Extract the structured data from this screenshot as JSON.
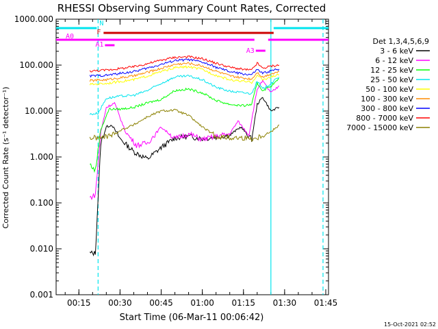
{
  "chart_data": {
    "type": "line",
    "title": "RHESSI Observing Summary Count Rates, Corrected",
    "xlabel": "Start Time (06-Mar-11 00:06:42)",
    "ylabel": "Corrected Count Rate (s⁻¹ detector⁻¹)",
    "y_scale": "log",
    "ylim": [
      0.001,
      1000
    ],
    "xlim_minutes": [
      "00:06:42",
      "01:46:00"
    ],
    "y_ticks": [
      "1000.000",
      "100.000",
      "10.000",
      "1.000",
      "0.100",
      "0.010",
      "0.001"
    ],
    "x_ticks": [
      "00:15",
      "00:30",
      "00:45",
      "01:00",
      "01:15",
      "01:30",
      "01:45"
    ],
    "legend_title": "Det 1,3,4,5,6,9",
    "legend_position": "right",
    "footer": "15-Oct-2021 02:52",
    "grid": false,
    "flags": [
      {
        "label": "N",
        "color": "#00e5ee",
        "segments": [
          [
            "00:06:42",
            "00:21:30"
          ],
          [
            "01:26:00",
            "01:46:00"
          ]
        ]
      },
      {
        "label": "F",
        "color": "#cc0000",
        "segments": [
          [
            "00:24:00",
            "01:26:00"
          ]
        ]
      },
      {
        "label": "A0",
        "color": "#ff00ff",
        "segments": [
          [
            "00:06:42",
            "01:19:00"
          ],
          [
            "01:24:00",
            "01:46:00"
          ]
        ]
      },
      {
        "label": "A1",
        "color": "#ff00ff",
        "segments": [
          [
            "00:24:30",
            "00:28:00"
          ]
        ]
      },
      {
        "label": "A3",
        "color": "#ff00ff",
        "segments": [
          [
            "01:19:30",
            "01:23:00"
          ]
        ]
      }
    ],
    "markers": {
      "dashed": [
        "00:22:00",
        "01:44:00"
      ],
      "solid": [
        "01:25:00"
      ]
    },
    "series": [
      {
        "name": "3 - 6 keV",
        "color": "#000000",
        "x": [
          "00:19",
          "00:21",
          "00:23",
          "00:25",
          "00:27",
          "00:30",
          "00:35",
          "00:40",
          "00:45",
          "00:50",
          "00:55",
          "01:00",
          "01:05",
          "01:10",
          "01:14",
          "01:18",
          "01:20",
          "01:22",
          "01:25",
          "01:28"
        ],
        "y": [
          0.008,
          0.008,
          2.0,
          4.5,
          5.0,
          2.5,
          1.3,
          0.9,
          1.6,
          2.6,
          2.8,
          2.5,
          2.7,
          3.0,
          4.5,
          2.4,
          14,
          20,
          10,
          12
        ]
      },
      {
        "name": "6 - 12 keV",
        "color": "#ff00ff",
        "x": [
          "00:19",
          "00:21",
          "00:23",
          "00:25",
          "00:28",
          "00:32",
          "00:36",
          "00:40",
          "00:45",
          "00:50",
          "00:55",
          "01:00",
          "01:05",
          "01:10",
          "01:13",
          "01:17",
          "01:20",
          "01:22",
          "01:25",
          "01:28"
        ],
        "y": [
          0.13,
          0.15,
          3.5,
          12,
          15,
          3.5,
          1.8,
          2.0,
          4.5,
          2.5,
          3.2,
          2.4,
          2.8,
          3.2,
          6,
          3.0,
          30,
          45,
          25,
          35
        ]
      },
      {
        "name": "12 - 25 keV",
        "color": "#00ff00",
        "x": [
          "00:19",
          "00:21",
          "00:23",
          "00:26",
          "00:30",
          "00:35",
          "00:40",
          "00:45",
          "00:50",
          "00:55",
          "01:00",
          "01:05",
          "01:10",
          "01:15",
          "01:18",
          "01:20",
          "01:22",
          "01:25",
          "01:28"
        ],
        "y": [
          0.7,
          0.5,
          4.0,
          11,
          11,
          12,
          15,
          18,
          28,
          30,
          25,
          17,
          14,
          13,
          14,
          40,
          28,
          35,
          50
        ]
      },
      {
        "name": "25 - 50 keV",
        "color": "#00e5ee",
        "x": [
          "00:19",
          "00:22",
          "00:25",
          "00:30",
          "00:35",
          "00:40",
          "00:45",
          "00:50",
          "00:55",
          "01:00",
          "01:05",
          "01:10",
          "01:15",
          "01:18",
          "01:20",
          "01:22",
          "01:25",
          "01:28"
        ],
        "y": [
          8.5,
          9.0,
          19,
          21,
          22,
          28,
          40,
          55,
          58,
          48,
          33,
          27,
          25,
          24,
          45,
          30,
          40,
          55
        ]
      },
      {
        "name": "50 - 100 keV",
        "color": "#ffff00",
        "x": [
          "00:19",
          "00:25",
          "00:30",
          "00:35",
          "00:40",
          "00:45",
          "00:50",
          "00:55",
          "01:00",
          "01:05",
          "01:10",
          "01:15",
          "01:18",
          "01:20",
          "01:22",
          "01:25",
          "01:28"
        ],
        "y": [
          38,
          40,
          44,
          48,
          58,
          72,
          88,
          92,
          80,
          60,
          48,
          44,
          42,
          60,
          48,
          55,
          62
        ]
      },
      {
        "name": "100 - 300 keV",
        "color": "#ff8c00",
        "x": [
          "00:19",
          "00:25",
          "00:30",
          "00:35",
          "00:40",
          "00:45",
          "00:50",
          "00:55",
          "01:00",
          "01:05",
          "01:10",
          "01:15",
          "01:18",
          "01:20",
          "01:22",
          "01:25",
          "01:28"
        ],
        "y": [
          46,
          48,
          53,
          58,
          70,
          85,
          104,
          110,
          96,
          74,
          58,
          52,
          50,
          70,
          55,
          65,
          72
        ]
      },
      {
        "name": "300 - 800 keV",
        "color": "#0000ff",
        "x": [
          "00:19",
          "00:25",
          "00:30",
          "00:35",
          "00:40",
          "00:45",
          "00:50",
          "00:55",
          "01:00",
          "01:05",
          "01:10",
          "01:15",
          "01:18",
          "01:20",
          "01:22",
          "01:25",
          "01:28"
        ],
        "y": [
          58,
          60,
          66,
          72,
          86,
          104,
          126,
          132,
          116,
          90,
          72,
          64,
          62,
          80,
          66,
          75,
          82
        ]
      },
      {
        "name": "800 - 7000 keV",
        "color": "#ff0000",
        "x": [
          "00:19",
          "00:25",
          "00:30",
          "00:35",
          "00:40",
          "00:45",
          "00:50",
          "00:55",
          "01:00",
          "01:05",
          "01:10",
          "01:15",
          "01:18",
          "01:20",
          "01:22",
          "01:25",
          "01:28"
        ],
        "y": [
          74,
          78,
          84,
          92,
          108,
          128,
          148,
          152,
          138,
          110,
          90,
          80,
          78,
          110,
          85,
          95,
          100
        ]
      },
      {
        "name": "7000 - 15000 keV",
        "color": "#8b8000",
        "x": [
          "00:19",
          "00:23",
          "00:27",
          "00:31",
          "00:35",
          "00:40",
          "00:45",
          "00:50",
          "00:55",
          "01:00",
          "01:05",
          "01:10",
          "01:15",
          "01:18",
          "01:20",
          "01:22",
          "01:25",
          "01:28"
        ],
        "y": [
          2.6,
          2.6,
          3.0,
          4.0,
          5.0,
          7.5,
          10,
          10.5,
          8,
          4.5,
          2.8,
          2.6,
          2.6,
          2.5,
          2.6,
          3.0,
          3.5,
          5.0
        ]
      }
    ]
  }
}
